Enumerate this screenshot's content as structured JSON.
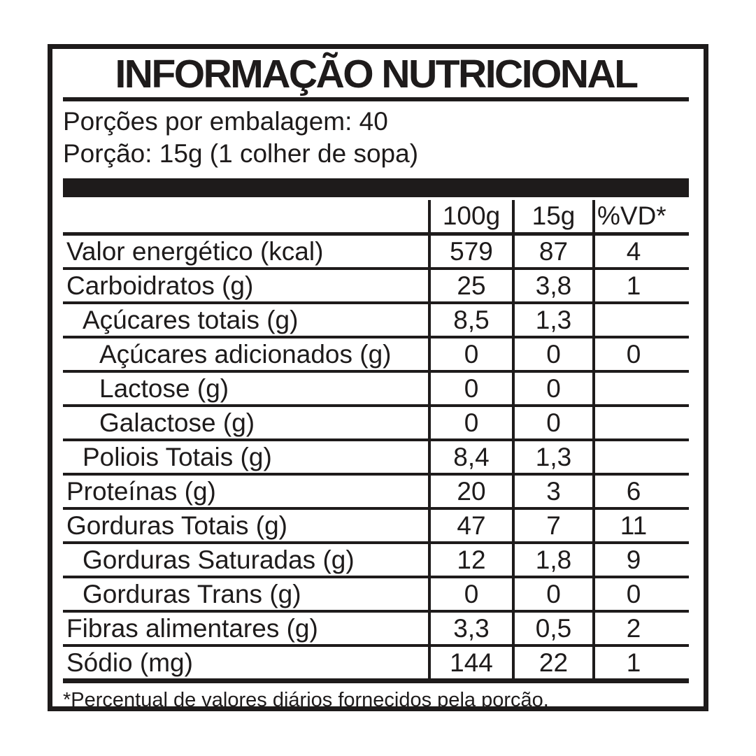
{
  "title": "INFORMAÇÃO NUTRICIONAL",
  "serving_info": {
    "line1": "Porções por embalagem: 40",
    "line2": "Porção: 15g (1 colher de sopa)"
  },
  "table": {
    "header": {
      "name": "",
      "col_100g": "100g",
      "col_15g": "15g",
      "col_vd": "%VD*"
    },
    "rows": [
      {
        "label": "Valor energético (kcal)",
        "indent": 0,
        "v100": "579",
        "v15": "87",
        "vd": "4"
      },
      {
        "label": "Carboidratos (g)",
        "indent": 0,
        "v100": "25",
        "v15": "3,8",
        "vd": "1"
      },
      {
        "label": "Açúcares totais (g)",
        "indent": 1,
        "v100": "8,5",
        "v15": "1,3",
        "vd": ""
      },
      {
        "label": "Açúcares adicionados (g)",
        "indent": 2,
        "v100": "0",
        "v15": "0",
        "vd": "0"
      },
      {
        "label": "Lactose (g)",
        "indent": 2,
        "v100": "0",
        "v15": "0",
        "vd": ""
      },
      {
        "label": "Galactose (g)",
        "indent": 2,
        "v100": "0",
        "v15": "0",
        "vd": ""
      },
      {
        "label": "Poliois Totais (g)",
        "indent": 1,
        "v100": "8,4",
        "v15": "1,3",
        "vd": ""
      },
      {
        "label": "Proteínas (g)",
        "indent": 0,
        "v100": "20",
        "v15": "3",
        "vd": "6"
      },
      {
        "label": "Gorduras Totais (g)",
        "indent": 0,
        "v100": "47",
        "v15": "7",
        "vd": "11"
      },
      {
        "label": "Gorduras Saturadas (g)",
        "indent": 1,
        "v100": "12",
        "v15": "1,8",
        "vd": "9"
      },
      {
        "label": "Gorduras Trans (g)",
        "indent": 1,
        "v100": "0",
        "v15": "0",
        "vd": "0"
      },
      {
        "label": "Fibras alimentares (g)",
        "indent": 0,
        "v100": "3,3",
        "v15": "0,5",
        "vd": "2"
      },
      {
        "label": "Sódio (mg)",
        "indent": 0,
        "v100": "144",
        "v15": "22",
        "vd": "1"
      }
    ]
  },
  "footnote": "*Percentual de valores diários fornecidos pela porção.",
  "colors": {
    "ink": "#1e1b1b",
    "background": "#ffffff"
  }
}
